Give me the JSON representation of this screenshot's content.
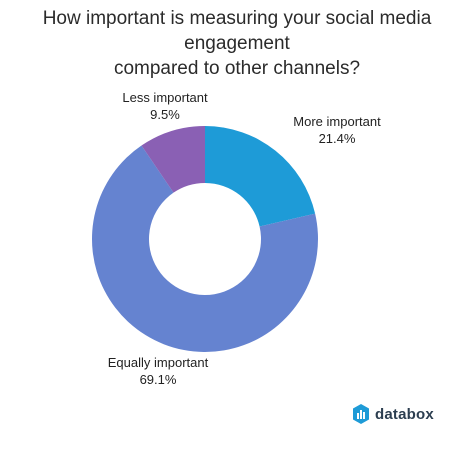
{
  "chart_data": {
    "type": "pie",
    "title_lines": [
      "How important is measuring your social media engagement",
      "compared to other channels?"
    ],
    "slices": [
      {
        "label": "More important",
        "value": 21.4,
        "value_text": "21.4%",
        "color": "#1e9bd7"
      },
      {
        "label": "Equally important",
        "value": 69.1,
        "value_text": "69.1%",
        "color": "#6583d0"
      },
      {
        "label": "Less important",
        "value": 9.5,
        "value_text": "9.5%",
        "color": "#8a60b4"
      }
    ],
    "donut": true,
    "legend": "none"
  },
  "brand": {
    "name": "databox",
    "icon": "databox-logo-icon",
    "icon_color": "#1e9bd7"
  }
}
